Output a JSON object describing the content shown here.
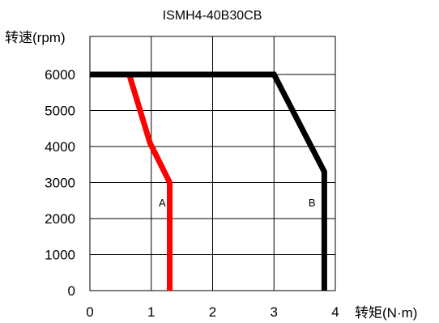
{
  "chart_data": {
    "type": "line",
    "title": "ISMH4-40B30CB",
    "xlabel": "转矩(N·m)",
    "ylabel": "转速(rpm)",
    "xlim": [
      0,
      4
    ],
    "ylim": [
      0,
      6000
    ],
    "x_ticks": [
      "0",
      "1",
      "2",
      "3",
      "4"
    ],
    "y_ticks": [
      "0",
      "1000",
      "2000",
      "3000",
      "4000",
      "5000",
      "6000"
    ],
    "grid": true,
    "series": [
      {
        "name": "A",
        "color": "#ff0000",
        "x": [
          0,
          0.64,
          0.98,
          1.3,
          1.3
        ],
        "y": [
          6000,
          6000,
          4100,
          3000,
          0
        ]
      },
      {
        "name": "B",
        "color": "#000000",
        "x": [
          0,
          3.0,
          3.82,
          3.82
        ],
        "y": [
          6000,
          6000,
          3300,
          0
        ]
      }
    ],
    "annotations": [
      {
        "text": "A",
        "x": 1.18,
        "y": 2450
      },
      {
        "text": "B",
        "x": 3.62,
        "y": 2450
      }
    ]
  }
}
